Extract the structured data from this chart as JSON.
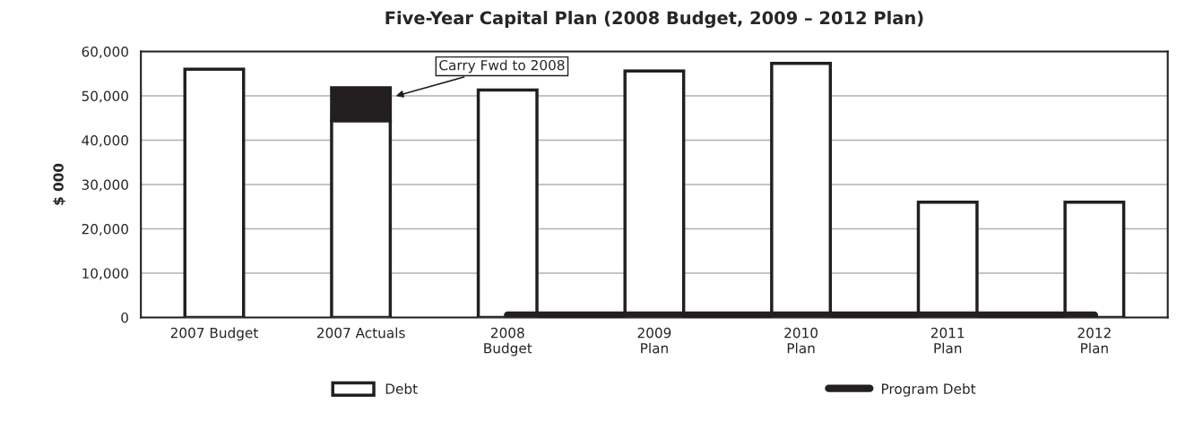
{
  "chart_data": {
    "type": "bar",
    "title": "Five-Year Capital Plan (2008 Budget, 2009 – 2012 Plan)",
    "ylabel": "$ 000",
    "categories": [
      "2007 Budget",
      "2007 Actuals",
      "2008\nBudget",
      "2009\nPlan",
      "2010\nPlan",
      "2011\nPlan",
      "2012\nPlan"
    ],
    "stacked": true,
    "series": [
      {
        "name": "Debt",
        "color": "#ffffff",
        "values": [
          56000,
          44400,
          51300,
          55600,
          57300,
          26000,
          26000
        ]
      },
      {
        "color": "#231f20",
        "values": [
          null,
          7400,
          null,
          null,
          null,
          null,
          null
        ]
      },
      {
        "name": "Program Debt",
        "type": "line",
        "color": "#231f20",
        "values": [
          null,
          null,
          500,
          500,
          500,
          500,
          500
        ]
      }
    ],
    "ylim": [
      0,
      60000
    ],
    "yticks": [
      {
        "value": 0,
        "label": "0"
      },
      {
        "value": 10000,
        "label": "10,000"
      },
      {
        "value": 20000,
        "label": "20,000"
      },
      {
        "value": 30000,
        "label": "30,000"
      },
      {
        "value": 40000,
        "label": "40,000"
      },
      {
        "value": 50000,
        "label": "50,000"
      },
      {
        "value": 60000,
        "label": "60,000"
      }
    ],
    "annotations": [
      "Carry Fwd to 2008"
    ],
    "grid": "y",
    "legend": "bottom"
  }
}
